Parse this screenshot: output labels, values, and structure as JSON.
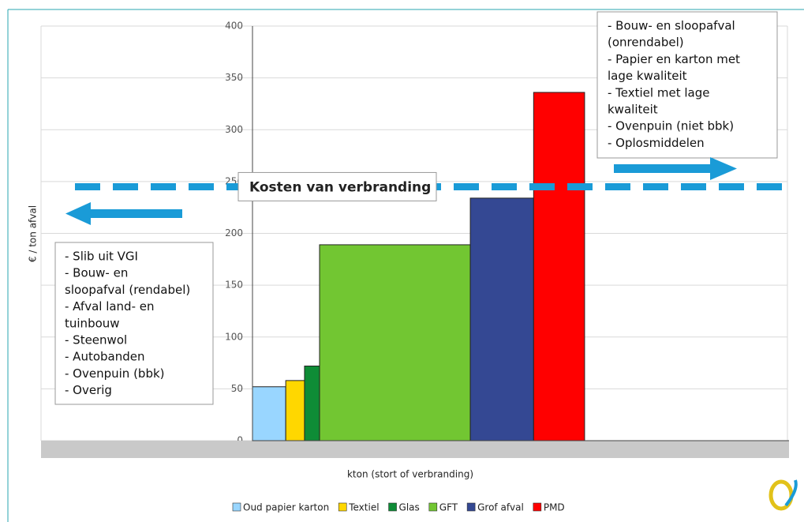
{
  "chart_data": {
    "type": "bar",
    "categories": [
      "Oud papier karton",
      "Textiel",
      "Glas",
      "GFT",
      "Grof afval",
      "PMD"
    ],
    "values": [
      52,
      58,
      72,
      189,
      234,
      336
    ],
    "colors": [
      "#99d6ff",
      "#ffd700",
      "#0e8c36",
      "#72c632",
      "#344893",
      "#ff0000"
    ],
    "bins": [
      0,
      62,
      97,
      125,
      406,
      524,
      619
    ],
    "xlim": [
      0,
      1000
    ],
    "ylim": [
      0,
      400
    ],
    "yticks": [
      0,
      50,
      100,
      150,
      200,
      250,
      300,
      350,
      400
    ],
    "grid": true,
    "y_label": "€ / ton afval",
    "x_label": "kton (stort of verbranding)",
    "reference_line": {
      "value": 245,
      "label": "Kosten van verbranding",
      "color": "#1a9bd7"
    },
    "annotations": [
      {
        "lines": [
          "- Bouw- en sloopafval",
          "(onrendabel)",
          "- Papier en karton met",
          "lage kwaliteit",
          "- Textiel met lage",
          "kwaliteit",
          "- Ovenpuin (niet bbk)",
          "- Oplosmiddelen"
        ]
      },
      {
        "lines": [
          "- Slib uit VGI",
          "- Bouw- en",
          "sloopafval (rendabel)",
          "- Afval land- en",
          "tuinbouw",
          "- Steenwol",
          "- Autobanden",
          "- Ovenpuin (bbk)",
          "- Overig"
        ]
      }
    ]
  }
}
